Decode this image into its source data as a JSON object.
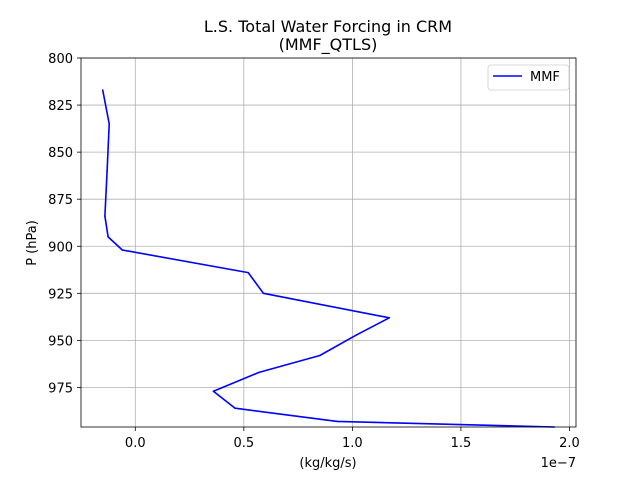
{
  "chart_data": {
    "type": "line",
    "title_line1": "L.S. Total Water Forcing in CRM",
    "title_line2": "(MMF_QTLS)",
    "xlabel": "(kg/kg/s)",
    "ylabel": "P (hPa)",
    "x_offset_label": "1e−7",
    "xlim": [
      -0.25,
      2.03
    ],
    "ylim": [
      996,
      800
    ],
    "y_inverted": true,
    "grid": true,
    "legend_location": "top-right",
    "x_ticks": [
      {
        "value": 0.0,
        "label": "0.0"
      },
      {
        "value": 0.5,
        "label": "0.5"
      },
      {
        "value": 1.0,
        "label": "1.0"
      },
      {
        "value": 1.5,
        "label": "1.5"
      },
      {
        "value": 2.0,
        "label": "2.0"
      }
    ],
    "y_ticks": [
      {
        "value": 800,
        "label": "800"
      },
      {
        "value": 825,
        "label": "825"
      },
      {
        "value": 850,
        "label": "850"
      },
      {
        "value": 875,
        "label": "875"
      },
      {
        "value": 900,
        "label": "900"
      },
      {
        "value": 925,
        "label": "925"
      },
      {
        "value": 950,
        "label": "950"
      },
      {
        "value": 975,
        "label": "975"
      }
    ],
    "series": [
      {
        "name": "MMF",
        "color": "#0000ff",
        "points": [
          {
            "x": -0.15,
            "y": 817
          },
          {
            "x": -0.12,
            "y": 835
          },
          {
            "x": -0.13,
            "y": 860
          },
          {
            "x": -0.14,
            "y": 884
          },
          {
            "x": -0.125,
            "y": 895
          },
          {
            "x": -0.06,
            "y": 902
          },
          {
            "x": 0.52,
            "y": 914
          },
          {
            "x": 0.59,
            "y": 925
          },
          {
            "x": 1.17,
            "y": 938
          },
          {
            "x": 1.02,
            "y": 947
          },
          {
            "x": 0.85,
            "y": 958
          },
          {
            "x": 0.57,
            "y": 967
          },
          {
            "x": 0.36,
            "y": 977
          },
          {
            "x": 0.46,
            "y": 986
          },
          {
            "x": 0.93,
            "y": 993
          },
          {
            "x": 1.93,
            "y": 996
          }
        ]
      }
    ]
  }
}
